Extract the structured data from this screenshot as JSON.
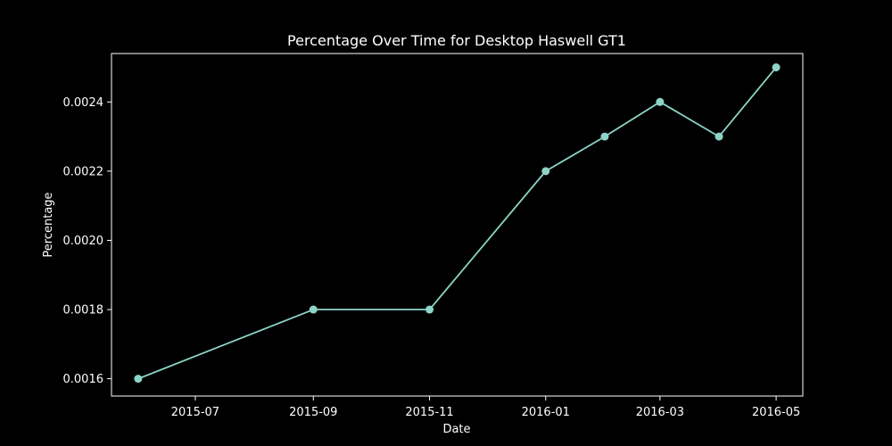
{
  "colors": {
    "background": "#000000",
    "foreground": "#ffffff",
    "series": "#8dd3c7"
  },
  "chart_data": {
    "type": "line",
    "title": "Percentage Over Time for Desktop Haswell GT1",
    "xlabel": "Date",
    "ylabel": "Percentage",
    "x": [
      "2015-06-01",
      "2015-09-01",
      "2015-11-01",
      "2016-01-01",
      "2016-02-01",
      "2016-03-01",
      "2016-04-01",
      "2016-05-01"
    ],
    "series": [
      {
        "values": [
          0.0016,
          0.0018,
          0.0018,
          0.0022,
          0.0023,
          0.0024,
          0.0023,
          0.0025
        ],
        "marker": "circle"
      }
    ],
    "xlim": [
      "2015-05-18",
      "2016-05-15"
    ],
    "ylim": [
      0.00155,
      0.00254
    ],
    "xticks": [
      {
        "date": "2015-07-01",
        "label": "2015-07"
      },
      {
        "date": "2015-09-01",
        "label": "2015-09"
      },
      {
        "date": "2015-11-01",
        "label": "2015-11"
      },
      {
        "date": "2016-01-01",
        "label": "2016-01"
      },
      {
        "date": "2016-03-01",
        "label": "2016-03"
      },
      {
        "date": "2016-05-01",
        "label": "2016-05"
      }
    ],
    "yticks": [
      {
        "value": 0.0016,
        "label": "0.0016"
      },
      {
        "value": 0.0018,
        "label": "0.0018"
      },
      {
        "value": 0.002,
        "label": "0.0020"
      },
      {
        "value": 0.0022,
        "label": "0.0022"
      },
      {
        "value": 0.0024,
        "label": "0.0024"
      }
    ],
    "grid": false,
    "legend": "none"
  }
}
